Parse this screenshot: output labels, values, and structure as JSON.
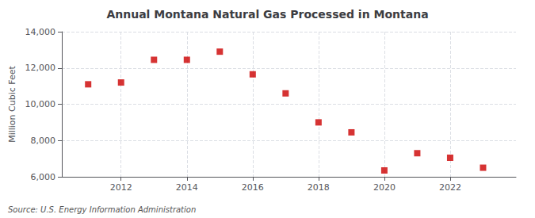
{
  "chart_data": {
    "type": "scatter",
    "title": "Annual Montana Natural Gas Processed in Montana",
    "ylabel": "Million Cubic Feet",
    "source": "Source: U.S. Energy Information Administration",
    "x": [
      2011,
      2012,
      2013,
      2014,
      2015,
      2016,
      2017,
      2018,
      2019,
      2020,
      2021,
      2022,
      2023
    ],
    "values": [
      11100,
      11200,
      12450,
      12450,
      12900,
      11650,
      10600,
      9000,
      8450,
      6350,
      7300,
      7050,
      6500
    ],
    "color": "#cc0000",
    "marker": "square",
    "xlim": [
      2010.2,
      2024.0
    ],
    "ylim": [
      6000,
      14000
    ],
    "xticks": [
      2012,
      2014,
      2016,
      2018,
      2020,
      2022
    ],
    "yticks": [
      {
        "value": 6000,
        "label": "6,000"
      },
      {
        "value": 8000,
        "label": "8,000"
      },
      {
        "value": 10000,
        "label": "10,000"
      },
      {
        "value": 12000,
        "label": "12,000"
      },
      {
        "value": 14000,
        "label": "14,000"
      }
    ],
    "grid": true
  }
}
